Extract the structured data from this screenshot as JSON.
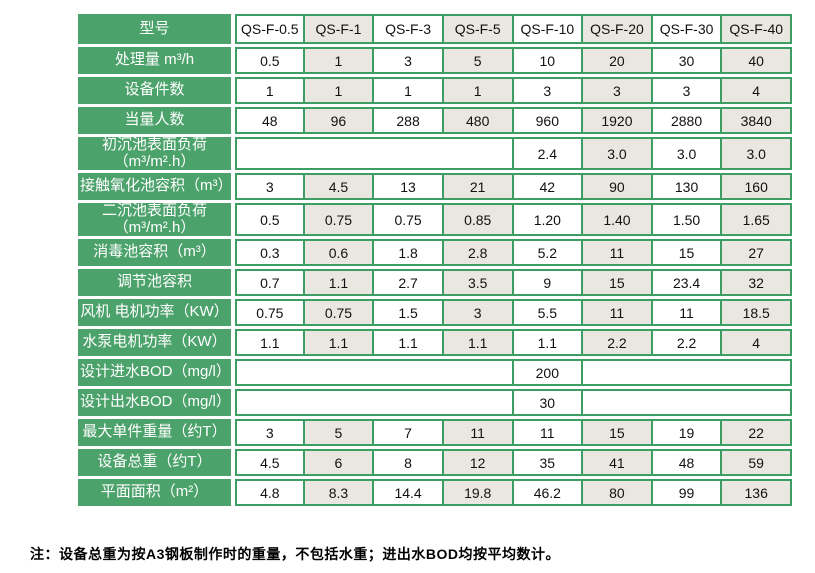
{
  "note": "注：设备总重为按A3钢板制作时的重量，不包括水重；进出水BOD均按平均数计。",
  "colors": {
    "green_fill": "#4CA26B",
    "green_border": "#3C9E62",
    "shaded_cell": "#E9E7DF",
    "text": "#111111",
    "label_text": "#FFFFFF"
  },
  "chart_data": {
    "type": "table",
    "title": "",
    "corner_label": "型号",
    "models": [
      "QS-F-0.5",
      "QS-F-1",
      "QS-F-3",
      "QS-F-5",
      "QS-F-10",
      "QS-F-20",
      "QS-F-30",
      "QS-F-40"
    ],
    "rows": [
      {
        "label": "处理量 m³/h",
        "cells": [
          "0.5",
          "1",
          "3",
          "5",
          "10",
          "20",
          "30",
          "40"
        ]
      },
      {
        "label": "设备件数",
        "cells": [
          "1",
          "1",
          "1",
          "1",
          "3",
          "3",
          "3",
          "4"
        ]
      },
      {
        "label": "当量人数",
        "cells": [
          "48",
          "96",
          "288",
          "480",
          "960",
          "1920",
          "2880",
          "3840"
        ]
      },
      {
        "label": "初沉池表面负荷（m³/m².h）",
        "cells": [
          {
            "text": "",
            "span": 4
          },
          "2.4",
          "3.0",
          "3.0",
          "3.0"
        ]
      },
      {
        "label": "接触氧化池容积（m³）",
        "cells": [
          "3",
          "4.5",
          "13",
          "21",
          "42",
          "90",
          "130",
          "160"
        ]
      },
      {
        "label": "二沉池表面负荷（m³/m².h）",
        "cells": [
          "0.5",
          "0.75",
          "0.75",
          "0.85",
          "1.20",
          "1.40",
          "1.50",
          "1.65"
        ]
      },
      {
        "label": "消毒池容积（m³）",
        "cells": [
          "0.3",
          "0.6",
          "1.8",
          "2.8",
          "5.2",
          "11",
          "15",
          "27"
        ]
      },
      {
        "label": "调节池容积",
        "cells": [
          "0.7",
          "1.1",
          "2.7",
          "3.5",
          "9",
          "15",
          "23.4",
          "32"
        ]
      },
      {
        "label": "风机 电机功率（KW）",
        "cells": [
          "0.75",
          "0.75",
          "1.5",
          "3",
          "5.5",
          "11",
          "11",
          "18.5"
        ]
      },
      {
        "label": "水泵电机功率（KW）",
        "cells": [
          "1.1",
          "1.1",
          "1.1",
          "1.1",
          "1.1",
          "2.2",
          "2.2",
          "4"
        ]
      },
      {
        "label": "设计进水BOD（mg/l）",
        "cells": [
          {
            "text": "",
            "span": 4
          },
          "200",
          {
            "text": "",
            "span": 3
          }
        ]
      },
      {
        "label": "设计出水BOD（mg/l）",
        "cells": [
          {
            "text": "",
            "span": 4
          },
          "30",
          {
            "text": "",
            "span": 3
          }
        ]
      },
      {
        "label": "最大单件重量（约T）",
        "cells": [
          "3",
          "5",
          "7",
          "11",
          "11",
          "15",
          "19",
          "22"
        ]
      },
      {
        "label": "设备总重（约T）",
        "cells": [
          "4.5",
          "6",
          "8",
          "12",
          "35",
          "41",
          "48",
          "59"
        ]
      },
      {
        "label": "平面面积（m²）",
        "cells": [
          "4.8",
          "8.3",
          "14.4",
          "19.8",
          "46.2",
          "80",
          "99",
          "136"
        ]
      }
    ]
  }
}
